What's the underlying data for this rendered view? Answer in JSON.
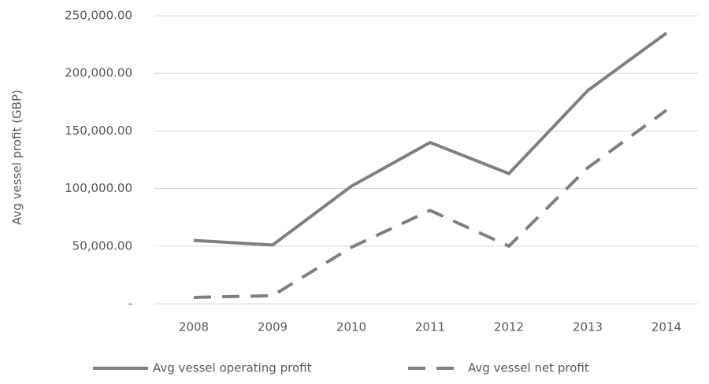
{
  "chart_data": {
    "type": "line",
    "y_label": "Avg vessel profit (GBP)",
    "categories": [
      "2008",
      "2009",
      "2010",
      "2011",
      "2012",
      "2013",
      "2014"
    ],
    "series": [
      {
        "name": "Avg vessel operating profit",
        "color": "#7f7f7f",
        "dash": "solid",
        "values": [
          55000,
          51000,
          102000,
          140000,
          113000,
          185000,
          235000
        ]
      },
      {
        "name": "Avg vessel net profit",
        "color": "#7f7f7f",
        "dash": "dashed",
        "values": [
          5500,
          7000,
          49000,
          81000,
          50000,
          118000,
          168000
        ]
      }
    ],
    "ylim": [
      0,
      250000
    ],
    "yticks": [
      {
        "value": 0,
        "label": "-"
      },
      {
        "value": 50000,
        "label": "50,000.00"
      },
      {
        "value": 100000,
        "label": "100,000.00"
      },
      {
        "value": 150000,
        "label": "150,000.00"
      },
      {
        "value": 200000,
        "label": "200,000.00"
      },
      {
        "value": 250000,
        "label": "250,000.00"
      }
    ],
    "grid": true,
    "legend": "bottom"
  }
}
